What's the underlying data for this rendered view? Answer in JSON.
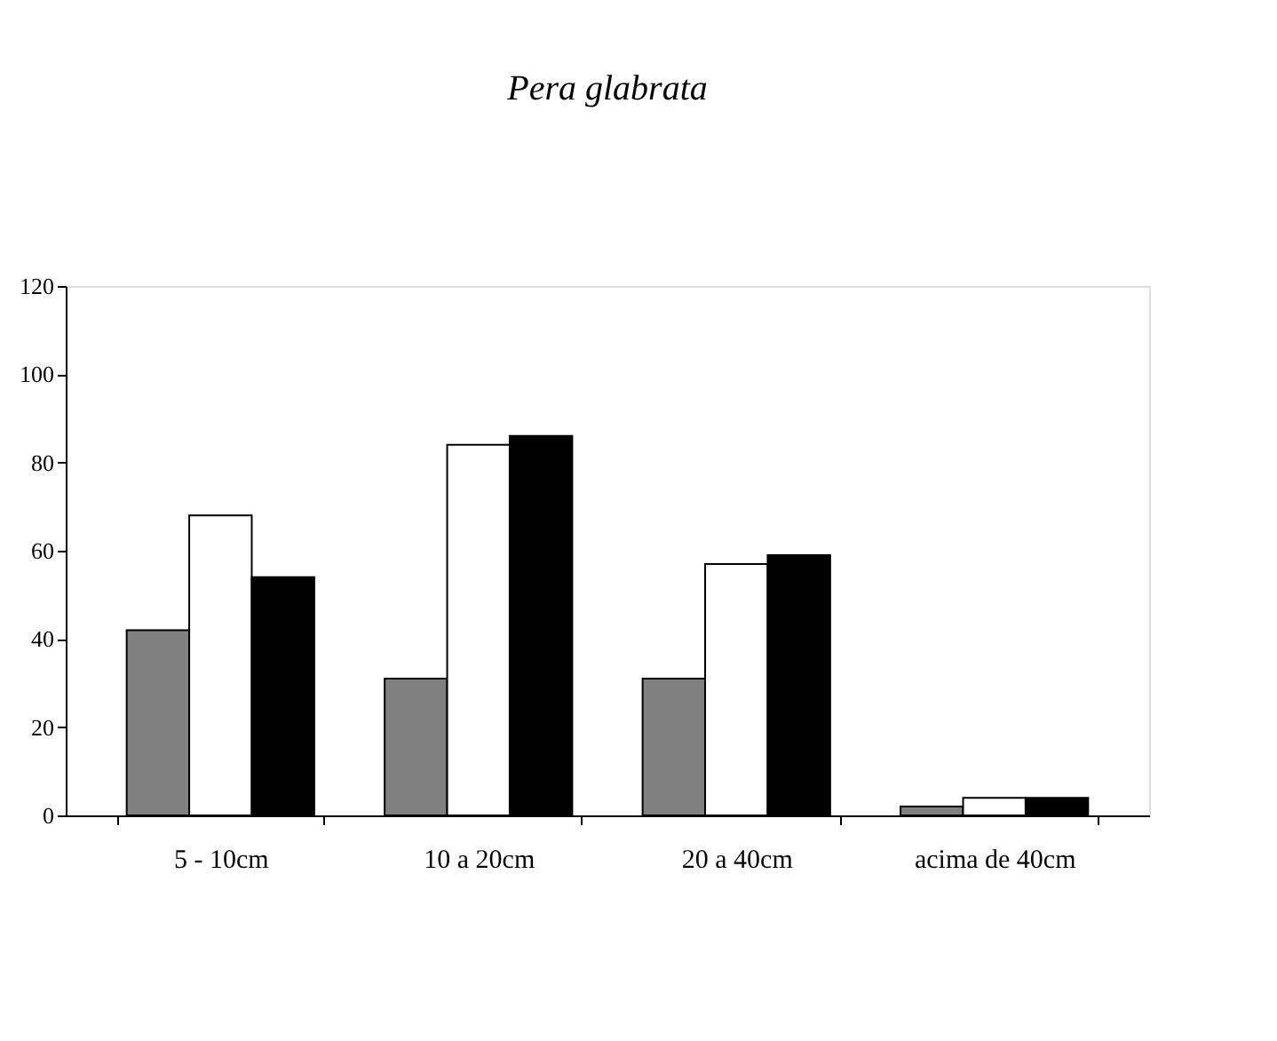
{
  "chart_data": {
    "type": "bar",
    "title": "Pera glabrata",
    "categories": [
      "5 - 10cm",
      "10 a 20cm",
      "20 a 40cm",
      "acima de 40cm"
    ],
    "series": [
      {
        "color": "#808080",
        "values": [
          42,
          31,
          31,
          2
        ]
      },
      {
        "color": "#ffffff",
        "values": [
          68,
          84,
          57,
          4
        ]
      },
      {
        "color": "#000000",
        "values": [
          54,
          86,
          59,
          4
        ]
      }
    ],
    "ylim": [
      0,
      120
    ],
    "yticks": [
      0,
      20,
      40,
      60,
      80,
      100,
      120
    ],
    "grid": false
  }
}
